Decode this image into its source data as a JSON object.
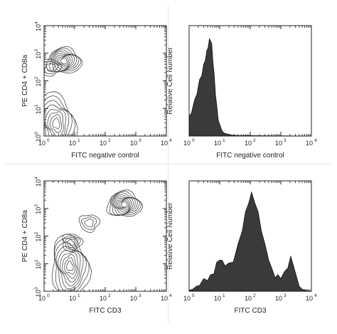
{
  "chart_data": [
    {
      "type": "contour",
      "xlabel": "FITC negative control",
      "ylabel": "PE CD4 + CD8a",
      "x_scale": "log",
      "y_scale": "log",
      "xlim": [
        1,
        10000
      ],
      "ylim": [
        1,
        10000
      ],
      "ticks": [
        1,
        10,
        100,
        1000,
        10000
      ],
      "tick_exponents": [
        "0",
        "1",
        "2",
        "3",
        "4"
      ],
      "populations": [
        {
          "x": 4.5,
          "y": 520,
          "levels": 9
        },
        {
          "x": 2.5,
          "y": 2.8,
          "levels": 8
        },
        {
          "x": 1.6,
          "y": 310,
          "levels": 3
        }
      ]
    },
    {
      "type": "area",
      "xlabel": "FITC negative control",
      "ylabel": "Relative Cell Number",
      "x_scale": "log",
      "xlim": [
        1,
        10000
      ],
      "ticks": [
        1,
        10,
        100,
        1000,
        10000
      ],
      "tick_exponents": [
        "0",
        "1",
        "2",
        "3",
        "4"
      ],
      "fill": "#3a3a3a",
      "x": [
        1,
        1.2,
        1.5,
        1.8,
        2.2,
        2.6,
        3.0,
        3.4,
        3.8,
        4.2,
        4.6,
        5.0,
        5.5,
        6.0,
        6.6,
        7.3,
        8.0,
        9.0,
        10,
        12,
        14,
        18,
        25,
        40,
        10000
      ],
      "y": [
        0.18,
        0.26,
        0.35,
        0.45,
        0.56,
        0.64,
        0.72,
        0.8,
        0.86,
        0.93,
        0.98,
        1.0,
        0.93,
        0.78,
        0.62,
        0.44,
        0.3,
        0.18,
        0.1,
        0.05,
        0.03,
        0.02,
        0.01,
        0.005,
        0
      ]
    },
    {
      "type": "contour",
      "xlabel": "FITC CD3",
      "ylabel": "PE CD4 + CD8a",
      "x_scale": "log",
      "y_scale": "log",
      "xlim": [
        1,
        10000
      ],
      "ylim": [
        1,
        10000
      ],
      "ticks": [
        1,
        10,
        100,
        1000,
        10000
      ],
      "tick_exponents": [
        "0",
        "1",
        "2",
        "3",
        "4"
      ],
      "populations": [
        {
          "x": 420,
          "y": 1400,
          "levels": 10
        },
        {
          "x": 7,
          "y": 8,
          "levels": 9
        },
        {
          "x": 8,
          "y": 60,
          "levels": 4
        },
        {
          "x": 30,
          "y": 300,
          "levels": 3
        }
      ]
    },
    {
      "type": "area",
      "xlabel": "FITC CD3",
      "ylabel": "Relative Cell Number",
      "x_scale": "log",
      "xlim": [
        1,
        10000
      ],
      "ticks": [
        1,
        10,
        100,
        1000,
        10000
      ],
      "tick_exponents": [
        "0",
        "1",
        "2",
        "3",
        "4"
      ],
      "fill": "#3a3a3a",
      "x": [
        1,
        1.3,
        1.7,
        2.2,
        3,
        4,
        5,
        6.5,
        8,
        10,
        12,
        15,
        20,
        28,
        40,
        55,
        70,
        90,
        110,
        140,
        180,
        230,
        300,
        400,
        500,
        650,
        800,
        1000,
        1300,
        1700,
        2100,
        2600,
        3200,
        4000,
        5000,
        6500,
        10000
      ],
      "y": [
        0.01,
        0.02,
        0.05,
        0.08,
        0.11,
        0.13,
        0.15,
        0.2,
        0.28,
        0.34,
        0.3,
        0.28,
        0.27,
        0.32,
        0.47,
        0.64,
        0.8,
        0.93,
        1.0,
        0.93,
        0.8,
        0.64,
        0.47,
        0.34,
        0.22,
        0.16,
        0.15,
        0.15,
        0.18,
        0.26,
        0.34,
        0.28,
        0.14,
        0.05,
        0.02,
        0.01,
        0
      ]
    }
  ]
}
